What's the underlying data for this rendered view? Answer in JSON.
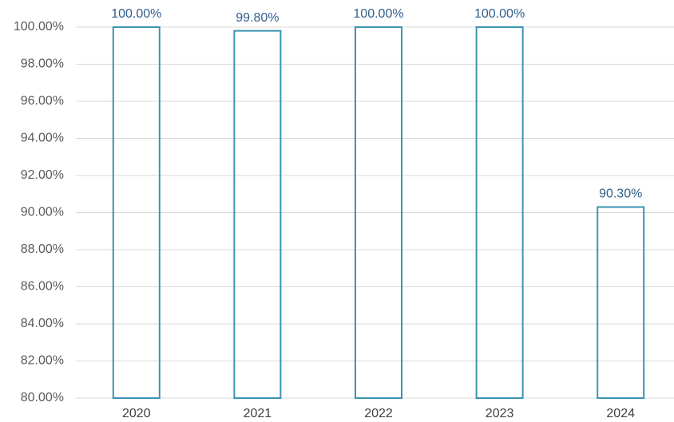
{
  "chart_data": {
    "type": "bar",
    "categories": [
      "2020",
      "2021",
      "2022",
      "2023",
      "2024"
    ],
    "values": [
      100,
      99.8,
      100,
      100,
      90.3
    ],
    "value_labels": [
      "100.00%",
      "99.80%",
      "100.00%",
      "100.00%",
      "90.30%"
    ],
    "color": "#3c93b3",
    "ylim": [
      80,
      100
    ],
    "yticks": [
      {
        "value": 80,
        "label": "80.00%"
      },
      {
        "value": 82,
        "label": "82.00%"
      },
      {
        "value": 84,
        "label": "84.00%"
      },
      {
        "value": 86,
        "label": "86.00%"
      },
      {
        "value": 88,
        "label": "88.00%"
      },
      {
        "value": 90,
        "label": "90.00%"
      },
      {
        "value": 92,
        "label": "92.00%"
      },
      {
        "value": 94,
        "label": "94.00%"
      },
      {
        "value": 96,
        "label": "96.00%"
      },
      {
        "value": 98,
        "label": "98.00%"
      },
      {
        "value": 100,
        "label": "100.00%"
      }
    ],
    "grid": true
  }
}
